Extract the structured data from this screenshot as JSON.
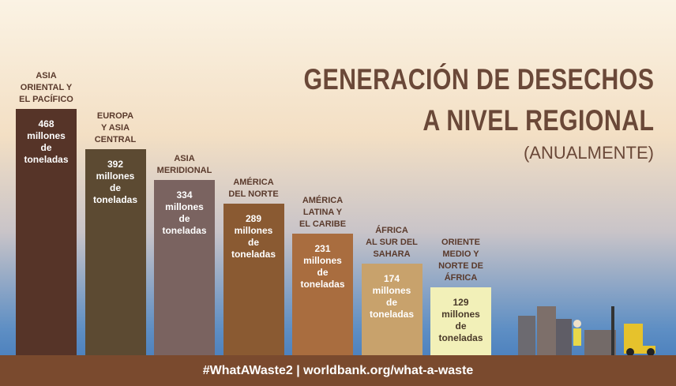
{
  "chart_data": {
    "type": "bar",
    "title_lines": [
      "GENERACIÓN DE DESECHOS",
      "A NIVEL REGIONAL"
    ],
    "subtitle": "(ANUALMENTE)",
    "categories": [
      "ASIA\nORIENTAL Y\nEL PACÍFICO",
      "EUROPA\nY ASIA\nCENTRAL",
      "ASIA\nMERIDIONAL",
      "AMÉRICA\nDEL NORTE",
      "AMÉRICA\nLATINA Y\nEL CARIBE",
      "ÁFRICA\nAL SUR DEL\nSAHARA",
      "ORIENTE\nMEDIO Y\nNORTE DE\nÁFRICA"
    ],
    "values": [
      468,
      392,
      334,
      289,
      231,
      174,
      129
    ],
    "value_unit": "millones\nde\ntoneladas",
    "colors": [
      "#563428",
      "#5c4a32",
      "#7a6360",
      "#8a5a32",
      "#a96d3f",
      "#c8a26c",
      "#f2f0b8"
    ],
    "ylim": [
      0,
      500
    ],
    "footer": "#WhatAWaste2 | worldbank.org/what-a-waste"
  }
}
